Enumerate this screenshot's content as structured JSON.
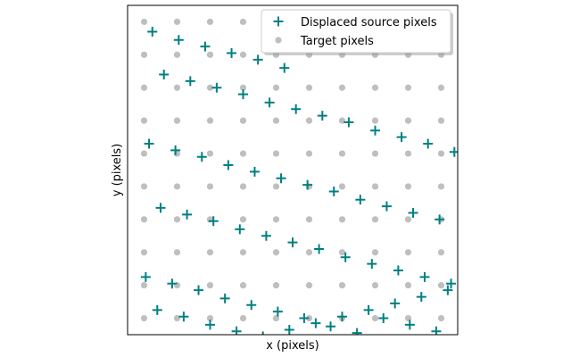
{
  "chart_data": {
    "type": "scatter",
    "xlabel": "x (pixels)",
    "ylabel": "y (pixels)",
    "xlim": [
      -0.5,
      9.5
    ],
    "ylim": [
      9.5,
      -0.5
    ],
    "grid": false,
    "legend_position": "top-right",
    "series": [
      {
        "name": "Displaced source pixels",
        "marker": "plus",
        "color": "#008080",
        "x": [
          0.25,
          1.05,
          1.85,
          2.65,
          3.45,
          4.25,
          0.6,
          1.4,
          2.2,
          3.0,
          3.8,
          4.6,
          5.4,
          6.2,
          7.0,
          7.8,
          8.6,
          9.4,
          0.15,
          0.95,
          1.75,
          2.55,
          3.35,
          4.15,
          4.95,
          5.75,
          6.55,
          7.35,
          8.15,
          8.95,
          0.5,
          1.3,
          2.1,
          2.9,
          3.7,
          4.5,
          5.3,
          6.1,
          6.9,
          7.7,
          8.5,
          9.3,
          0.05,
          0.85,
          1.65,
          2.45,
          3.25,
          4.05,
          4.85,
          5.65,
          6.45,
          7.25,
          8.05,
          8.85,
          0.4,
          1.2,
          2.0,
          2.8,
          3.6,
          4.4,
          5.2,
          6.0,
          6.8,
          7.6,
          8.4,
          9.2
        ],
        "y": [
          0.3,
          0.55,
          0.75,
          0.95,
          1.15,
          1.4,
          1.6,
          1.8,
          2.0,
          2.2,
          2.45,
          2.65,
          2.85,
          3.05,
          3.3,
          3.5,
          3.7,
          3.95,
          3.7,
          3.9,
          4.1,
          4.35,
          4.55,
          4.75,
          4.95,
          5.15,
          5.4,
          5.6,
          5.8,
          6.0,
          5.65,
          5.85,
          6.05,
          6.3,
          6.5,
          6.7,
          6.9,
          7.15,
          7.35,
          7.55,
          7.75,
          7.95,
          7.75,
          7.95,
          8.15,
          8.4,
          8.6,
          8.8,
          9.0,
          9.25,
          9.45,
          9.0,
          9.2,
          9.4,
          8.75,
          8.95,
          9.2,
          9.4,
          9.55,
          9.35,
          9.15,
          8.95,
          8.75,
          8.55,
          8.35,
          8.15
        ]
      },
      {
        "name": "Target pixels",
        "marker": "circle",
        "color": "#bfbfbf",
        "x_values": [
          0,
          1,
          2,
          3,
          4,
          5,
          6,
          7,
          8,
          9
        ],
        "y_values": [
          0,
          1,
          2,
          3,
          4,
          5,
          6,
          7,
          8,
          9
        ]
      }
    ]
  }
}
